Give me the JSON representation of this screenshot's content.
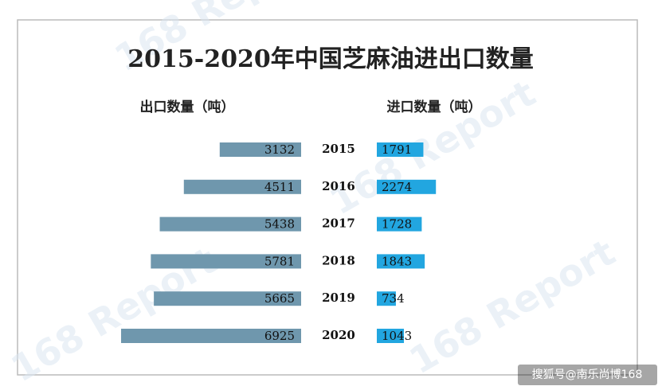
{
  "chart_data": {
    "type": "butterfly",
    "title": "2015-2020年中国芝麻油进出口数量",
    "categories": [
      "2015",
      "2016",
      "2017",
      "2018",
      "2019",
      "2020"
    ],
    "series": [
      {
        "name": "出口数量（吨）",
        "color": "#6f97ad",
        "values": [
          3132,
          4511,
          5438,
          5781,
          5665,
          6925
        ]
      },
      {
        "name": "进口数量（吨）",
        "color": "#22a6e0",
        "values": [
          1791,
          2274,
          1728,
          1843,
          734,
          1043
        ]
      }
    ]
  },
  "watermark": "168 Report",
  "source": "搜狐号@南乐尚博168"
}
